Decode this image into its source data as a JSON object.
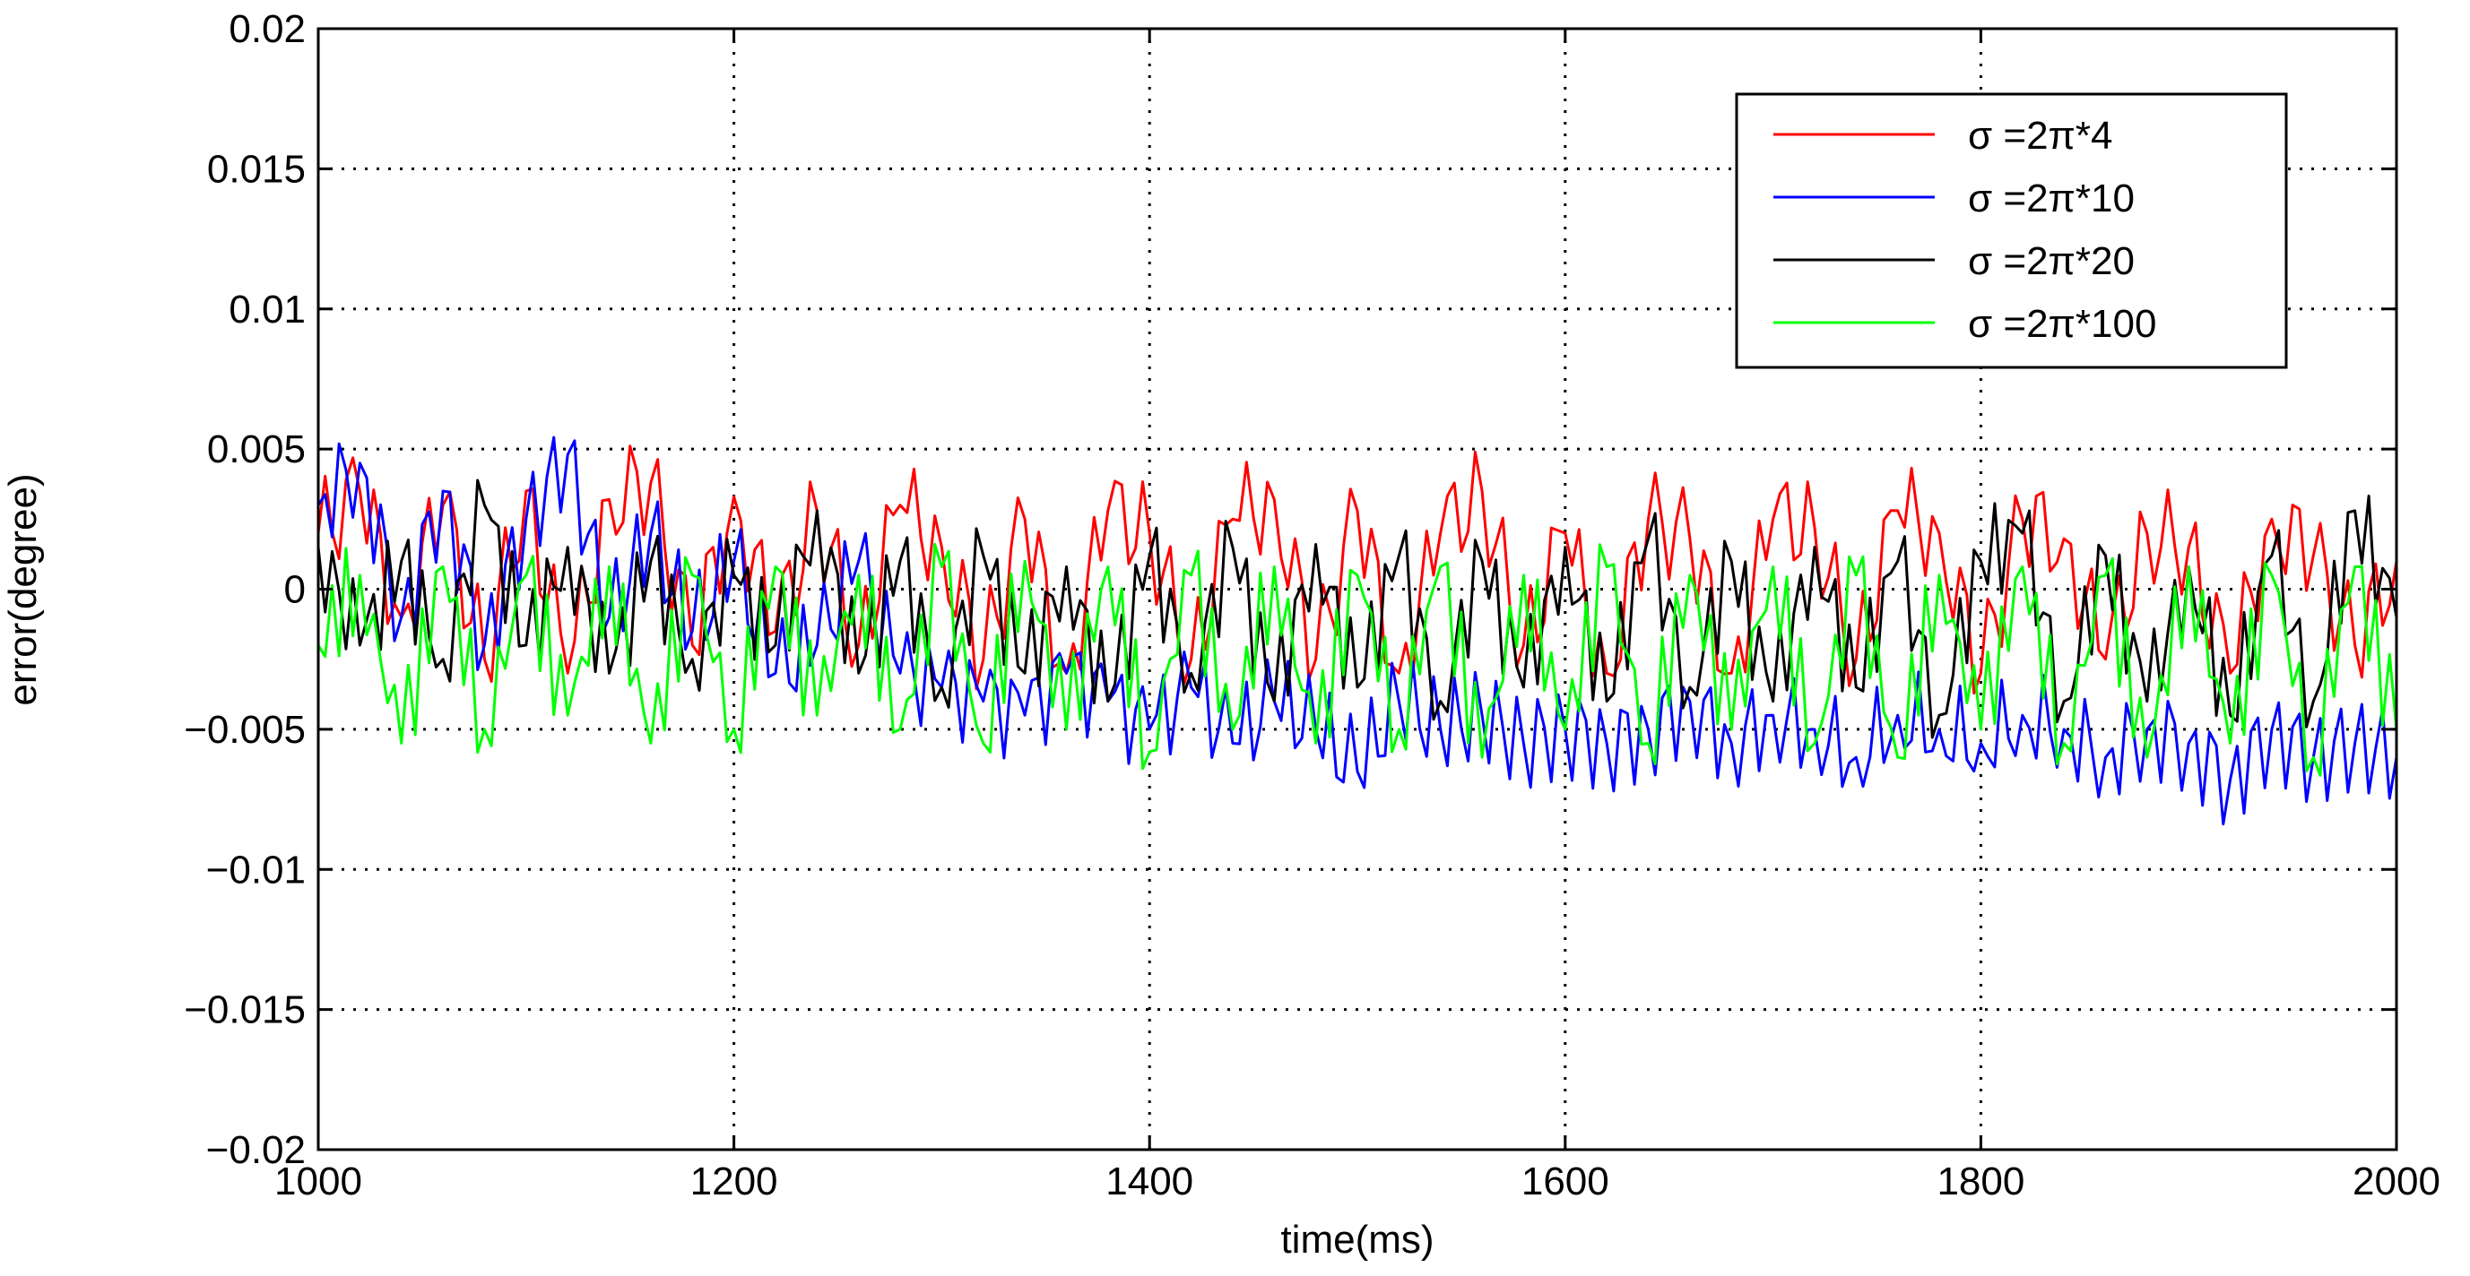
{
  "chart_data": {
    "type": "line",
    "xlabel": "time(ms)",
    "ylabel": "error(degree)",
    "xlim": [
      1000,
      2000
    ],
    "ylim": [
      -0.02,
      0.02
    ],
    "xticks": [
      1000,
      1200,
      1400,
      1600,
      1800,
      2000
    ],
    "yticks": [
      0.02,
      0.015,
      0.01,
      0.005,
      0,
      -0.005,
      -0.01,
      -0.015,
      -0.02
    ],
    "ytick_labels": [
      "0.02",
      "0.015",
      "0.01",
      "0.005",
      "0",
      "−0.005",
      "−0.01",
      "−0.015",
      "−0.02"
    ],
    "grid": true,
    "legend_position": "top-right",
    "series": [
      {
        "name": "σ =2π*4",
        "color": "#ff0000",
        "x": [
          1000,
          1020,
          1040,
          1060,
          1080,
          1100,
          1120,
          1140,
          1160,
          1180,
          1200,
          1220,
          1240,
          1260,
          1280,
          1300,
          1320,
          1340,
          1360,
          1380,
          1400,
          1420,
          1440,
          1460,
          1480,
          1500,
          1520,
          1540,
          1560,
          1580,
          1600,
          1620,
          1640,
          1660,
          1680,
          1700,
          1720,
          1740,
          1760,
          1780,
          1800,
          1820,
          1840,
          1860,
          1880,
          1900,
          1920,
          1940,
          1960,
          1980,
          2000
        ],
        "values": [
          0.002,
          0.0035,
          -0.001,
          0.003,
          -0.0025,
          0.0035,
          -0.003,
          0.0032,
          0.0038,
          -0.002,
          0.0033,
          -0.0015,
          0.0028,
          -0.002,
          0.003,
          0.0015,
          -0.0025,
          0.0025,
          -0.003,
          0.0028,
          0.002,
          -0.0025,
          0.0025,
          0.0032,
          -0.0025,
          0.0028,
          -0.003,
          0.002,
          0.0035,
          -0.002,
          0.002,
          -0.003,
          0.0025,
          0.0018,
          -0.003,
          0.0025,
          0.0022,
          -0.0025,
          0.0028,
          0.002,
          -0.003,
          0.0025,
          0.0018,
          -0.0025,
          0.002,
          0.0015,
          -0.003,
          0.0025,
          0.0012,
          -0.002,
          0.001
        ]
      },
      {
        "name": "σ =2π*10",
        "color": "#0000ff",
        "x": [
          1000,
          1020,
          1040,
          1060,
          1080,
          1100,
          1120,
          1140,
          1160,
          1180,
          1200,
          1220,
          1240,
          1260,
          1280,
          1300,
          1320,
          1340,
          1360,
          1380,
          1400,
          1420,
          1440,
          1460,
          1480,
          1500,
          1520,
          1540,
          1560,
          1580,
          1600,
          1620,
          1640,
          1660,
          1680,
          1700,
          1720,
          1740,
          1760,
          1780,
          1800,
          1820,
          1840,
          1860,
          1880,
          1900,
          1920,
          1940,
          1960,
          1980,
          2000
        ],
        "values": [
          0.003,
          0.0045,
          -0.001,
          0.0035,
          -0.002,
          0.0025,
          0.0048,
          -0.001,
          0.002,
          -0.0015,
          0.001,
          -0.003,
          -0.002,
          0.001,
          -0.003,
          -0.0035,
          -0.004,
          -0.0045,
          -0.003,
          -0.004,
          -0.005,
          -0.0035,
          -0.0055,
          -0.004,
          -0.005,
          -0.0065,
          -0.004,
          -0.005,
          -0.0045,
          -0.0055,
          -0.005,
          -0.0055,
          -0.005,
          -0.004,
          -0.0055,
          -0.0045,
          -0.005,
          -0.006,
          -0.0045,
          -0.005,
          -0.0055,
          -0.0045,
          -0.005,
          -0.006,
          -0.005,
          -0.0055,
          -0.0068,
          -0.005,
          -0.006,
          -0.0055,
          -0.006
        ]
      },
      {
        "name": "σ =2π*20",
        "color": "#000000",
        "x": [
          1000,
          1020,
          1040,
          1060,
          1080,
          1100,
          1120,
          1140,
          1160,
          1180,
          1200,
          1220,
          1240,
          1260,
          1280,
          1300,
          1320,
          1340,
          1360,
          1380,
          1400,
          1420,
          1440,
          1460,
          1480,
          1500,
          1520,
          1540,
          1560,
          1580,
          1600,
          1620,
          1640,
          1660,
          1680,
          1700,
          1720,
          1740,
          1760,
          1780,
          1800,
          1820,
          1840,
          1860,
          1880,
          1900,
          1920,
          1940,
          1960,
          1980,
          2000
        ],
        "values": [
          0.0015,
          -0.002,
          0.001,
          -0.0025,
          0.003,
          -0.002,
          0.0015,
          -0.003,
          0.001,
          -0.0025,
          0.0005,
          -0.002,
          0.0028,
          -0.003,
          0.001,
          -0.0035,
          0.0012,
          -0.003,
          0.0008,
          -0.004,
          0.0012,
          -0.003,
          0.0015,
          -0.004,
          0.0016,
          -0.0035,
          0.0012,
          -0.004,
          0.001,
          -0.0035,
          0.0015,
          -0.004,
          0.0018,
          -0.0035,
          0.001,
          -0.004,
          0.0015,
          -0.0035,
          0.001,
          -0.0045,
          0.001,
          0.002,
          -0.004,
          0.0012,
          -0.004,
          0.0008,
          -0.0045,
          0.0012,
          -0.004,
          0.0028,
          -0.001
        ]
      },
      {
        "name": "σ =2π*100",
        "color": "#00ff00",
        "x": [
          1000,
          1020,
          1040,
          1060,
          1080,
          1100,
          1120,
          1140,
          1160,
          1180,
          1200,
          1220,
          1240,
          1260,
          1280,
          1300,
          1320,
          1340,
          1360,
          1380,
          1400,
          1420,
          1440,
          1460,
          1480,
          1500,
          1520,
          1540,
          1560,
          1580,
          1600,
          1620,
          1640,
          1660,
          1680,
          1700,
          1720,
          1740,
          1760,
          1780,
          1800,
          1820,
          1840,
          1860,
          1880,
          1900,
          1920,
          1940,
          1960,
          1980,
          2000
        ],
        "values": [
          -0.002,
          0.0005,
          -0.0055,
          0.0008,
          -0.005,
          0.0005,
          -0.0045,
          0.0008,
          -0.0055,
          0.0005,
          -0.005,
          0.0008,
          -0.0045,
          0.0005,
          -0.005,
          0.0008,
          -0.0055,
          0.001,
          -0.005,
          0.0008,
          -0.0058,
          0.0005,
          -0.005,
          0.0008,
          -0.0055,
          0.0005,
          -0.005,
          0.0008,
          -0.006,
          0.0005,
          -0.005,
          0.0008,
          -0.0055,
          0.0005,
          -0.005,
          0.0008,
          -0.0055,
          0.0005,
          -0.006,
          0.0005,
          -0.005,
          0.0008,
          -0.0055,
          0.0005,
          -0.006,
          0.0008,
          -0.0055,
          0.0005,
          -0.006,
          0.0008,
          -0.005
        ]
      }
    ]
  }
}
